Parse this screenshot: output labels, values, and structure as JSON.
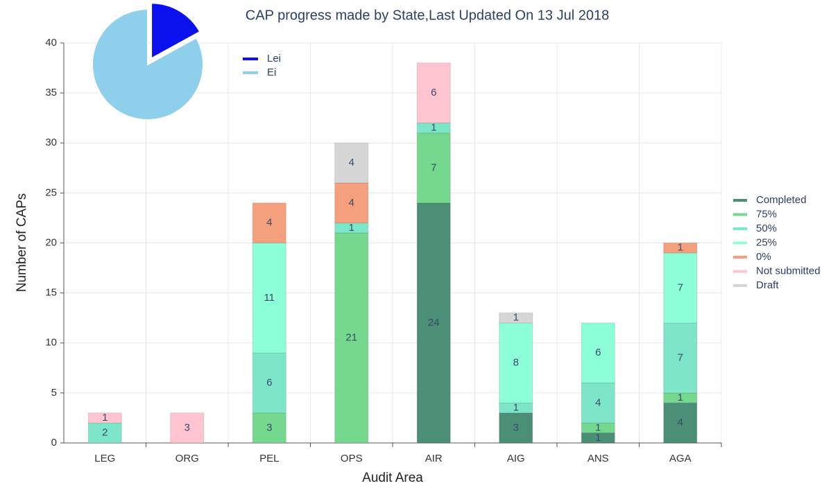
{
  "chart_data": [
    {
      "type": "bar",
      "stacked": true,
      "title": "CAP progress made by State,Last Updated On 13 Jul 2018",
      "x_label": "Audit Area",
      "y_label": "Number of CAPs",
      "categories": [
        "LEG",
        "ORG",
        "PEL",
        "OPS",
        "AIR",
        "AIG",
        "ANS",
        "AGA"
      ],
      "series": [
        {
          "name": "Completed",
          "color": "#4a8f76",
          "values": [
            null,
            null,
            null,
            null,
            24,
            3,
            1,
            4
          ]
        },
        {
          "name": "75%",
          "color": "#74d88e",
          "values": [
            null,
            null,
            3,
            21,
            7,
            null,
            1,
            1
          ]
        },
        {
          "name": "50%",
          "color": "#7de6c8",
          "values": [
            2,
            null,
            6,
            1,
            1,
            1,
            4,
            7
          ]
        },
        {
          "name": "25%",
          "color": "#8cffd8",
          "values": [
            null,
            null,
            11,
            null,
            null,
            8,
            6,
            7
          ]
        },
        {
          "name": "0%",
          "color": "#f5a07c",
          "values": [
            null,
            null,
            4,
            4,
            null,
            null,
            null,
            1
          ]
        },
        {
          "name": "Not submitted",
          "color": "#ffc4cf",
          "values": [
            1,
            3,
            null,
            null,
            6,
            null,
            null,
            null
          ]
        },
        {
          "name": "Draft",
          "color": "#d6d6d6",
          "values": [
            null,
            null,
            null,
            4,
            null,
            1,
            null,
            null
          ]
        }
      ],
      "ylim": [
        0,
        40
      ],
      "yticks": [
        0,
        5,
        10,
        15,
        20,
        25,
        30,
        35,
        40
      ],
      "grid": true,
      "legend": "right"
    },
    {
      "type": "pie",
      "categories": [
        "Lei",
        "Ei"
      ],
      "values": [
        17,
        83
      ],
      "colors": [
        "#0a10ee",
        "#8ecfec"
      ],
      "legend": "top-left"
    }
  ]
}
